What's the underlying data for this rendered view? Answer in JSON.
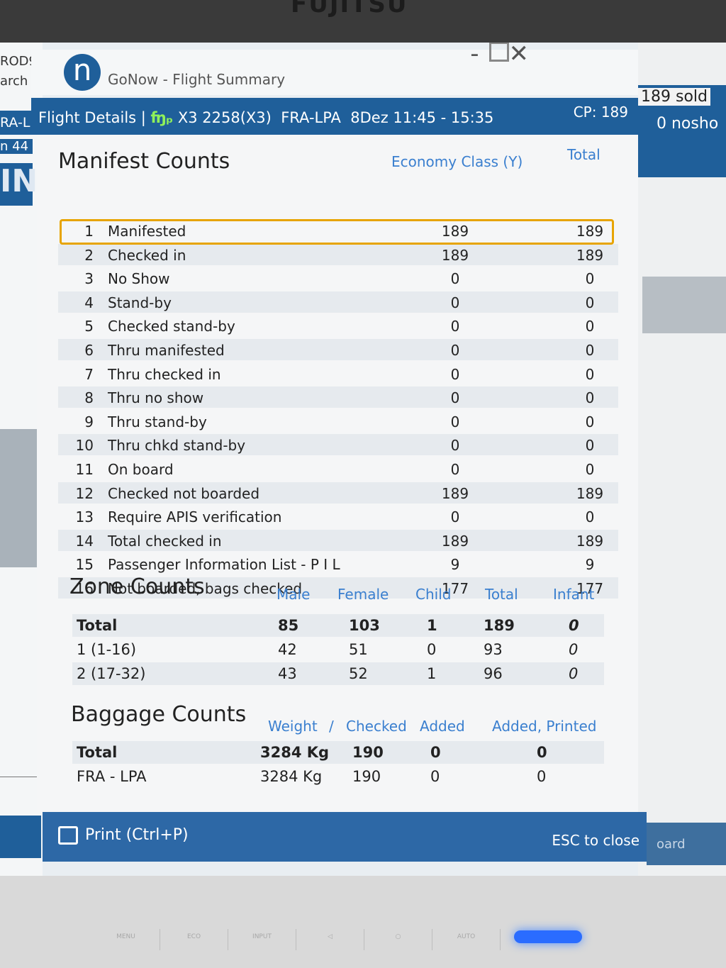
{
  "bezel": {
    "logo": "FUJITSU",
    "buttons": [
      "MENU",
      "ECO",
      "INPUT",
      "",
      "",
      "AUTO"
    ]
  },
  "background": {
    "left_text": [
      "ROD9",
      "arch",
      "RA-L",
      "n 44",
      "IN"
    ],
    "right_button": "oard"
  },
  "window": {
    "app_logo": "n",
    "title": "GoNow - Flight Summary",
    "controls": {
      "minimize": "-",
      "close": "✕"
    }
  },
  "header": {
    "prefix": "Flight Details |",
    "icon": "flight-icon",
    "flight": "X3 2258(X3)",
    "route": "FRA-LPA",
    "date_time": "8Dez 11:45 - 15:35",
    "cp": "CP: 189",
    "sold": "189 sold",
    "noshow": "0 nosho"
  },
  "manifest": {
    "title": "Manifest Counts",
    "col_class": "Economy Class (Y)",
    "col_total": "Total",
    "rows": [
      {
        "n": "1",
        "label": "Manifested",
        "class": "189",
        "total": "189"
      },
      {
        "n": "2",
        "label": "Checked in",
        "class": "189",
        "total": "189"
      },
      {
        "n": "3",
        "label": "No Show",
        "class": "0",
        "total": "0"
      },
      {
        "n": "4",
        "label": "Stand-by",
        "class": "0",
        "total": "0"
      },
      {
        "n": "5",
        "label": "Checked stand-by",
        "class": "0",
        "total": "0"
      },
      {
        "n": "6",
        "label": "Thru manifested",
        "class": "0",
        "total": "0"
      },
      {
        "n": "7",
        "label": "Thru checked in",
        "class": "0",
        "total": "0"
      },
      {
        "n": "8",
        "label": "Thru no show",
        "class": "0",
        "total": "0"
      },
      {
        "n": "9",
        "label": "Thru stand-by",
        "class": "0",
        "total": "0"
      },
      {
        "n": "10",
        "label": "Thru chkd stand-by",
        "class": "0",
        "total": "0"
      },
      {
        "n": "11",
        "label": "On board",
        "class": "0",
        "total": "0"
      },
      {
        "n": "12",
        "label": "Checked not boarded",
        "class": "189",
        "total": "189"
      },
      {
        "n": "13",
        "label": "Require APIS verification",
        "class": "0",
        "total": "0"
      },
      {
        "n": "14",
        "label": "Total checked in",
        "class": "189",
        "total": "189"
      },
      {
        "n": "15",
        "label": "Passenger Information List - P I L",
        "class": "9",
        "total": "9"
      },
      {
        "n": "16",
        "label": "Not boarded, bags checked",
        "class": "177",
        "total": "177"
      }
    ]
  },
  "zone": {
    "title": "Zone Counts",
    "headers": [
      "Male",
      "Female",
      "Child",
      "Total",
      "Infant"
    ],
    "rows": [
      {
        "name": "Total",
        "male": "85",
        "female": "103",
        "child": "1",
        "total": "189",
        "infant": "0"
      },
      {
        "name": "1 (1-16)",
        "male": "42",
        "female": "51",
        "child": "0",
        "total": "93",
        "infant": "0"
      },
      {
        "name": "2 (17-32)",
        "male": "43",
        "female": "52",
        "child": "1",
        "total": "96",
        "infant": "0"
      }
    ]
  },
  "baggage": {
    "title": "Baggage Counts",
    "headers": [
      "Weight",
      "/",
      "Checked",
      "Added",
      "Added, Printed"
    ],
    "rows": [
      {
        "name": "Total",
        "weight": "3284 Kg",
        "checked": "190",
        "added": "0",
        "added_printed": "0"
      },
      {
        "name": "FRA - LPA",
        "weight": "3284 Kg",
        "checked": "190",
        "added": "0",
        "added_printed": "0"
      }
    ]
  },
  "footer": {
    "print_label": "Print (Ctrl+P)",
    "esc_label": "ESC to close"
  }
}
